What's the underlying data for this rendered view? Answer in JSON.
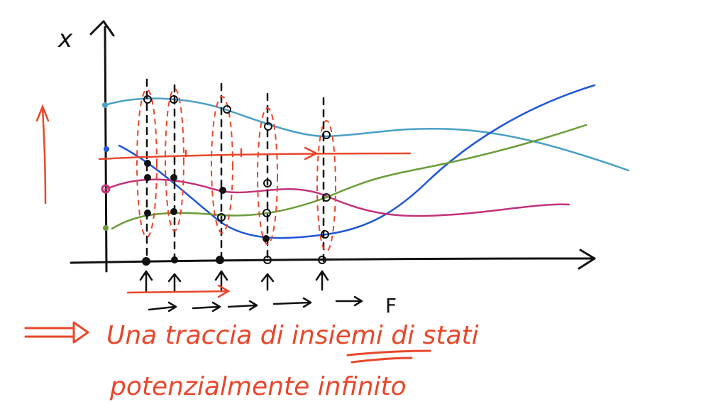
{
  "axes": {
    "y_label": "x",
    "x_end_label": "F"
  },
  "caption": {
    "line1": "Una traccia di insiemi di stati",
    "line2": "potenzialmente infinito"
  },
  "colors": {
    "ink": "#111111",
    "annotation": "#e8472b",
    "curve_light_blue": "#4a9fc4",
    "curve_blue": "#2056d8",
    "curve_magenta": "#c2327a",
    "curve_green": "#6a9c3a"
  },
  "icons": {
    "implication": "double-arrow-right-icon",
    "time_arrow": "arrow-right-icon"
  }
}
